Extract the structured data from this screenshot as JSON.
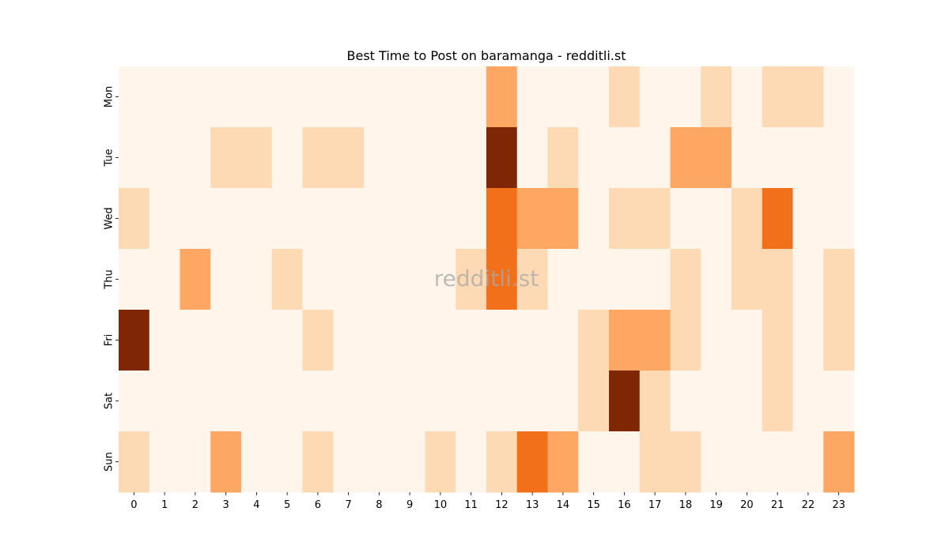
{
  "chart_data": {
    "type": "heatmap",
    "title": "Best Time to Post on baramanga - redditli.st",
    "watermark": "redditli.st",
    "x_categories": [
      "0",
      "1",
      "2",
      "3",
      "4",
      "5",
      "6",
      "7",
      "8",
      "9",
      "10",
      "11",
      "12",
      "13",
      "14",
      "15",
      "16",
      "17",
      "18",
      "19",
      "20",
      "21",
      "22",
      "23"
    ],
    "y_categories": [
      "Mon",
      "Tue",
      "Wed",
      "Thu",
      "Fri",
      "Sat",
      "Sun"
    ],
    "values": [
      [
        0,
        0,
        0,
        0,
        0,
        0,
        0,
        0,
        0,
        0,
        0,
        0,
        2,
        0,
        0,
        0,
        1,
        0,
        0,
        1,
        0,
        1,
        1,
        0
      ],
      [
        0,
        0,
        0,
        1,
        1,
        0,
        1,
        1,
        0,
        0,
        0,
        0,
        4,
        0,
        1,
        0,
        0,
        0,
        2,
        2,
        0,
        0,
        0,
        0
      ],
      [
        1,
        0,
        0,
        0,
        0,
        0,
        0,
        0,
        0,
        0,
        0,
        0,
        3,
        2,
        2,
        0,
        1,
        1,
        0,
        0,
        1,
        3,
        0,
        0
      ],
      [
        0,
        0,
        2,
        0,
        0,
        1,
        0,
        0,
        0,
        0,
        0,
        1,
        3,
        1,
        0,
        0,
        0,
        0,
        1,
        0,
        1,
        1,
        0,
        1
      ],
      [
        4,
        0,
        0,
        0,
        0,
        0,
        1,
        0,
        0,
        0,
        0,
        0,
        0,
        0,
        0,
        1,
        2,
        2,
        1,
        0,
        0,
        1,
        0,
        1
      ],
      [
        0,
        0,
        0,
        0,
        0,
        0,
        0,
        0,
        0,
        0,
        0,
        0,
        0,
        0,
        0,
        1,
        4,
        1,
        0,
        0,
        0,
        1,
        0,
        0
      ],
      [
        1,
        0,
        0,
        2,
        0,
        0,
        1,
        0,
        0,
        0,
        1,
        0,
        1,
        3,
        2,
        0,
        0,
        1,
        1,
        0,
        0,
        0,
        0,
        2
      ]
    ],
    "color_scale": [
      "#fff5eb",
      "#fdd9b4",
      "#fda762",
      "#f3701b",
      "#7f2704"
    ],
    "colorbar": false,
    "grid": false
  }
}
